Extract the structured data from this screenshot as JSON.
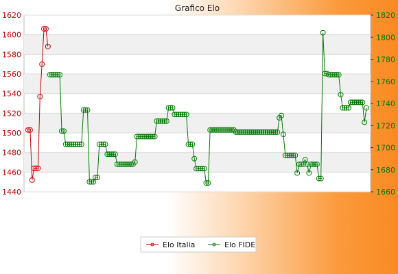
{
  "chart_data": {
    "type": "line",
    "title": "Grafico Elo",
    "xlabel": "",
    "ylabel_left": "",
    "ylabel_right": "",
    "ylim_left": [
      1440,
      1620
    ],
    "ylim_right": [
      1660,
      1820
    ],
    "yticks_left": [
      "1440",
      "1460",
      "1480",
      "1500",
      "1520",
      "1540",
      "1560",
      "1580",
      "1600",
      "1620"
    ],
    "yticks_right": [
      "1660",
      "1680",
      "1700",
      "1720",
      "1740",
      "1760",
      "1780",
      "1800",
      "1820"
    ],
    "grid": "horizontal alternating bands",
    "legend_position": "bottom-center",
    "series": [
      {
        "name": "Elo Italia",
        "axis": "left",
        "color": "#cc0000",
        "values": [
          1503,
          1503,
          1452,
          1464,
          1464,
          1464,
          1537,
          1570,
          1606,
          1606,
          1588
        ]
      },
      {
        "name": "Elo FIDE",
        "axis": "right",
        "color": "#007a00",
        "values": [
          null,
          null,
          null,
          null,
          null,
          null,
          null,
          null,
          null,
          null,
          null,
          1766,
          1766,
          1766,
          1766,
          1766,
          1766,
          1715,
          1715,
          1703,
          1703,
          1703,
          1703,
          1703,
          1703,
          1703,
          1703,
          1703,
          1734,
          1734,
          1734,
          1669,
          1669,
          1669,
          1673,
          1673,
          1703,
          1703,
          1703,
          1703,
          1694,
          1694,
          1694,
          1694,
          1694,
          1685,
          1685,
          1685,
          1685,
          1685,
          1685,
          1685,
          1685,
          1685,
          1687,
          1710,
          1710,
          1710,
          1710,
          1710,
          1710,
          1710,
          1710,
          1710,
          1710,
          1724,
          1724,
          1724,
          1724,
          1724,
          1724,
          1736,
          1736,
          1736,
          1730,
          1730,
          1730,
          1730,
          1730,
          1730,
          1730,
          1703,
          1703,
          1703,
          1690,
          1681,
          1681,
          1681,
          1681,
          1681,
          1668,
          1668,
          1716,
          1716,
          1716,
          1716,
          1716,
          1716,
          1716,
          1716,
          1716,
          1716,
          1716,
          1716,
          1716,
          1714,
          1714,
          1714,
          1714,
          1714,
          1714,
          1714,
          1714,
          1714,
          1714,
          1714,
          1714,
          1714,
          1714,
          1714,
          1714,
          1714,
          1714,
          1714,
          1714,
          1714,
          1714,
          1727,
          1729,
          1712,
          1693,
          1693,
          1693,
          1693,
          1693,
          1693,
          1677,
          1685,
          1685,
          1685,
          1689,
          1685,
          1677,
          1685,
          1685,
          1685,
          1685,
          1672,
          1672,
          1804,
          1767,
          1767,
          1766,
          1766,
          1766,
          1766,
          1766,
          1766,
          1748,
          1736,
          1736,
          1736,
          1736,
          1741,
          1741,
          1741,
          1741,
          1741,
          1741,
          1741,
          1723,
          1736
        ]
      }
    ],
    "x_tick_labels": []
  }
}
